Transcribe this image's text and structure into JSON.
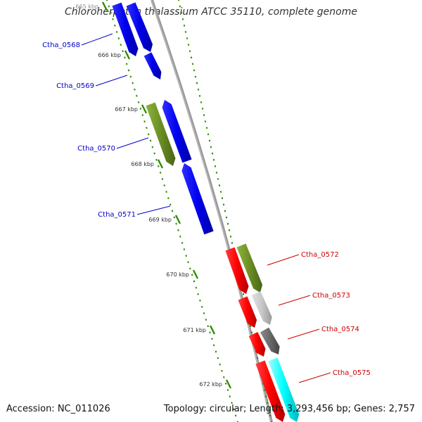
{
  "title": "Chloroherpeton thalassium ATCC 35110, complete genome",
  "accession": "Accession: NC_011026",
  "summary": "Topology: circular; Length: 3,293,456 bp; Genes: 2,757",
  "colors": {
    "blue": "#0000ee",
    "olive": "#6b8e23",
    "red": "#ff0000",
    "lightgray": "#c8c8c8",
    "darkgray": "#6a6a6a",
    "cyan": "#00ffff",
    "tick": "#2e8b00",
    "backbone": "#909090",
    "leftLabel": "#0000cc",
    "rightLabel": "#cc0000"
  },
  "kbp_ticks": [
    "665 kbp",
    "666 kbp",
    "667 kbp",
    "668 kbp",
    "669 kbp",
    "670 kbp",
    "671 kbp",
    "672 kbp"
  ],
  "left_genes": [
    "Ctha_0568",
    "Ctha_0569",
    "Ctha_0570",
    "Ctha_0571"
  ],
  "right_genes": [
    "Ctha_0572",
    "Ctha_0573",
    "Ctha_0574",
    "Ctha_0575"
  ],
  "features": [
    {
      "gene": "",
      "strand": "+",
      "color": "blue"
    },
    {
      "gene": "",
      "strand": "+",
      "color": "blue"
    },
    {
      "gene": "",
      "strand": "+",
      "color": "blue"
    },
    {
      "gene": "",
      "strand": "+",
      "color": "olive"
    },
    {
      "gene": "",
      "strand": "-",
      "color": "blue"
    },
    {
      "gene": "",
      "strand": "-",
      "color": "blue"
    },
    {
      "gene": "",
      "strand": "+",
      "color": "red"
    },
    {
      "gene": "",
      "strand": "+",
      "color": "olive"
    },
    {
      "gene": "",
      "strand": "+",
      "color": "red"
    },
    {
      "gene": "",
      "strand": "+",
      "color": "lightgray"
    },
    {
      "gene": "",
      "strand": "+",
      "color": "red"
    },
    {
      "gene": "",
      "strand": "+",
      "color": "darkgray"
    },
    {
      "gene": "",
      "strand": "+",
      "color": "red"
    },
    {
      "gene": "",
      "strand": "+",
      "color": "cyan"
    }
  ]
}
